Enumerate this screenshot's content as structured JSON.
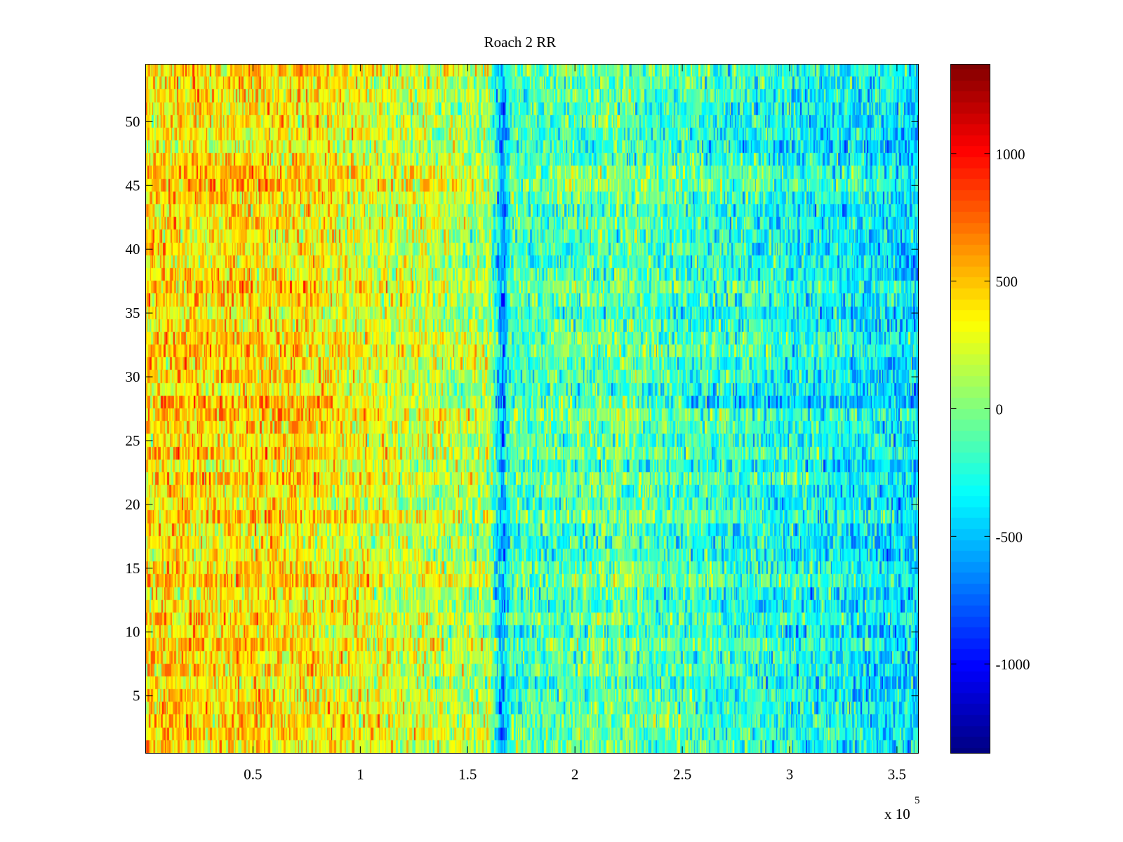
{
  "chart_data": {
    "type": "heatmap",
    "title": "Roach 2 RR",
    "xlabel": "",
    "ylabel": "",
    "x_exponent_label": "x 10",
    "x_exponent_power": "5",
    "xlim": [
      0,
      3.6
    ],
    "ylim": [
      0.5,
      54.5
    ],
    "x_ticks": [
      {
        "value": 0.5,
        "label": "0.5"
      },
      {
        "value": 1,
        "label": "1"
      },
      {
        "value": 1.5,
        "label": "1.5"
      },
      {
        "value": 2,
        "label": "2"
      },
      {
        "value": 2.5,
        "label": "2.5"
      },
      {
        "value": 3,
        "label": "3"
      },
      {
        "value": 3.5,
        "label": "3.5"
      }
    ],
    "y_ticks": [
      {
        "value": 5,
        "label": "5"
      },
      {
        "value": 10,
        "label": "10"
      },
      {
        "value": 15,
        "label": "15"
      },
      {
        "value": 20,
        "label": "20"
      },
      {
        "value": 25,
        "label": "25"
      },
      {
        "value": 30,
        "label": "30"
      },
      {
        "value": 35,
        "label": "35"
      },
      {
        "value": 40,
        "label": "40"
      },
      {
        "value": 45,
        "label": "45"
      },
      {
        "value": 50,
        "label": "50"
      }
    ],
    "rows": 54,
    "colorbar": {
      "colormap": "jet",
      "clim": [
        -1350,
        1350
      ],
      "ticks": [
        {
          "value": 1000,
          "label": "1000"
        },
        {
          "value": 500,
          "label": "500"
        },
        {
          "value": 0,
          "label": "0"
        },
        {
          "value": -500,
          "label": "-500"
        },
        {
          "value": -1000,
          "label": "-1000"
        }
      ]
    },
    "mean_trend": [
      {
        "x": 0.0,
        "value": 400
      },
      {
        "x": 0.5,
        "value": 420
      },
      {
        "x": 0.9,
        "value": 330
      },
      {
        "x": 1.2,
        "value": 200
      },
      {
        "x": 1.6,
        "value": 100
      },
      {
        "x": 1.66,
        "value": -650
      },
      {
        "x": 1.7,
        "value": -150
      },
      {
        "x": 2.2,
        "value": -80
      },
      {
        "x": 2.7,
        "value": -220
      },
      {
        "x": 3.2,
        "value": -320
      },
      {
        "x": 3.6,
        "value": -420
      }
    ],
    "low_row": {
      "row": 28,
      "x_start": 2.5,
      "value": -600
    },
    "high_row": {
      "row": 28,
      "x_end": 0.9,
      "value": 650
    }
  }
}
